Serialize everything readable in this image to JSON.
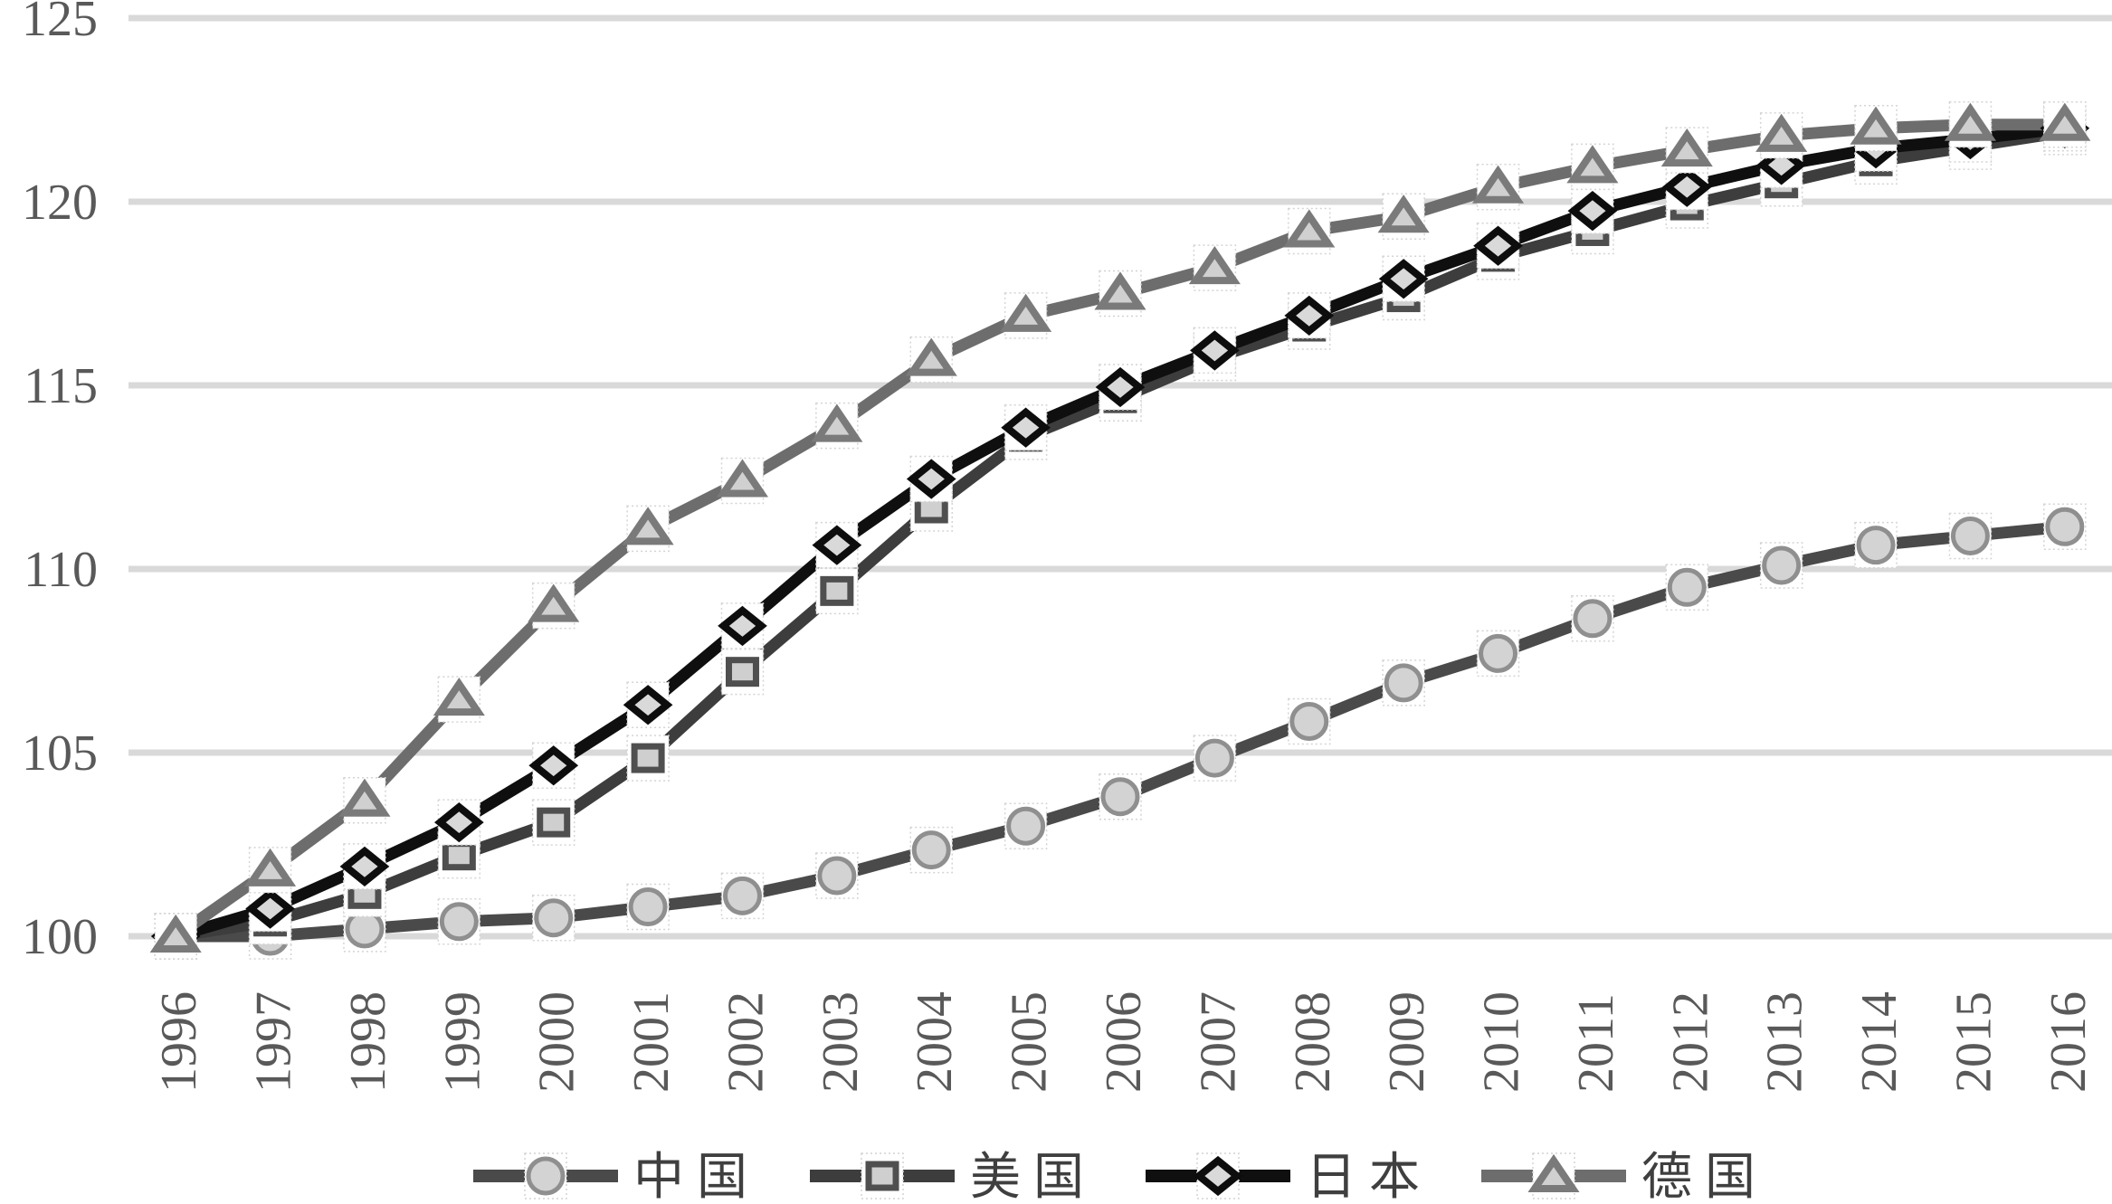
{
  "chart_data": {
    "type": "line",
    "title": "",
    "xlabel": "",
    "ylabel": "",
    "x": [
      "1996",
      "1997",
      "1998",
      "1999",
      "2000",
      "2001",
      "2002",
      "2003",
      "2004",
      "2005",
      "2006",
      "2007",
      "2008",
      "2009",
      "2010",
      "2011",
      "2012",
      "2013",
      "2014",
      "2015",
      "2016"
    ],
    "series": [
      {
        "name": "中国",
        "marker": "circle",
        "line_color": "#4a4a4a",
        "marker_fill": "#d3d3d3",
        "marker_stroke": "#8f8f8f",
        "values": [
          100.0,
          100.0,
          100.2,
          100.4,
          100.5,
          100.8,
          101.1,
          101.65,
          102.35,
          103.0,
          103.8,
          104.85,
          105.85,
          106.9,
          107.7,
          108.65,
          109.5,
          110.1,
          110.65,
          110.9,
          111.15
        ]
      },
      {
        "name": "美国",
        "marker": "square",
        "line_color": "#3d3d3d",
        "marker_fill": "#cfcfcf",
        "marker_stroke": "#4f4f4f",
        "values": [
          100.0,
          100.4,
          101.15,
          102.2,
          103.1,
          104.85,
          107.2,
          109.4,
          111.65,
          113.6,
          114.65,
          115.75,
          116.6,
          117.4,
          118.5,
          119.2,
          119.9,
          120.5,
          121.1,
          121.5,
          121.9
        ]
      },
      {
        "name": "日本",
        "marker": "diamond",
        "line_color": "#0f0f0f",
        "marker_fill": "#d9d9d9",
        "marker_stroke": "#0d0d0d",
        "values": [
          100.0,
          100.75,
          101.9,
          103.1,
          104.65,
          106.3,
          108.45,
          110.65,
          112.45,
          113.85,
          114.95,
          115.95,
          116.9,
          117.9,
          118.8,
          119.75,
          120.4,
          121.0,
          121.45,
          121.7,
          122.0
        ]
      },
      {
        "name": "德国",
        "marker": "triangle",
        "line_color": "#6d6d6d",
        "marker_fill": "#d0d0d0",
        "marker_stroke": "#7a7a7a",
        "values": [
          100.0,
          101.8,
          103.7,
          106.45,
          109.0,
          111.1,
          112.4,
          113.9,
          115.7,
          116.9,
          117.5,
          118.2,
          119.2,
          119.6,
          120.4,
          120.95,
          121.4,
          121.8,
          122.0,
          122.1,
          122.1
        ]
      }
    ],
    "ylim": [
      100,
      125
    ],
    "yticks": [
      "100",
      "105",
      "110",
      "115",
      "120",
      "125"
    ],
    "grid": true,
    "gridline_color": "#d9d9d9",
    "axis_label_color": "#595959",
    "legend_text_color": "#3f3f3f",
    "legend_position": "bottom"
  }
}
